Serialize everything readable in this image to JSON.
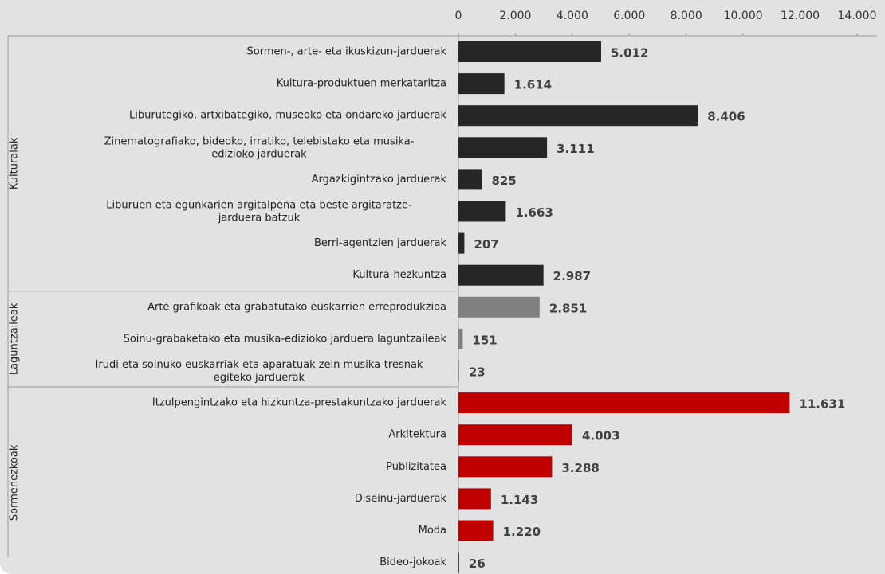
{
  "chart_data": {
    "type": "bar",
    "orientation": "horizontal",
    "xlim": [
      0,
      14000
    ],
    "xticks": [
      0,
      {
        "value": 2000,
        "label": "2.000"
      },
      {
        "value": 4000,
        "label": "4.000"
      },
      {
        "value": 6000,
        "label": "6.000"
      },
      {
        "value": 8000,
        "label": "8.000"
      },
      {
        "value": 10000,
        "label": "10.000"
      },
      {
        "value": 12000,
        "label": "12.000"
      },
      {
        "value": 14000,
        "label": "14.000"
      }
    ],
    "groups": [
      {
        "name": "Kulturalak",
        "color": "#262626",
        "categories": [
          "Sormen-, arte- eta ikuskizun-jarduerak",
          "Kultura-produktuen merkataritza",
          "Liburutegiko, artxibategiko, museoko eta ondareko jarduerak",
          "Zinematografiako, bideoko, irratiko, telebistako eta musika-\nedizioko jarduerak",
          "Argazkigintzako jarduerak",
          "Liburuen eta egunkarien argitalpena eta beste argitaratze-\njarduera batzuk",
          "Berri-agentzien jarduerak",
          "Kultura-hezkuntza"
        ],
        "values": [
          5012,
          1614,
          8406,
          3111,
          825,
          1663,
          207,
          2987
        ],
        "value_labels": [
          "5.012",
          "1.614",
          "8.406",
          "3.111",
          "825",
          "1.663",
          "207",
          "2.987"
        ]
      },
      {
        "name": "Laguntzaileak",
        "color": "#808080",
        "categories": [
          "Arte grafikoak eta grabatutako euskarrien erreprodukzioa",
          "Soinu-grabaketako eta musika-edizioko jarduera laguntzaileak",
          "Irudi eta soinuko euskarriak eta aparatuak zein musika-tresnak\negiteko jarduerak"
        ],
        "values": [
          2851,
          151,
          23
        ],
        "value_labels": [
          "2.851",
          "151",
          "23"
        ]
      },
      {
        "name": "Sormenezkoak",
        "color": "#c00000",
        "categories": [
          "Itzulpengintzako eta hizkuntza-prestakuntzako jarduerak",
          "Arkitektura",
          "Publizitatea",
          "Diseinu-jarduerak",
          "Moda",
          "Bideo-jokoak"
        ],
        "values": [
          11631,
          4003,
          3288,
          1143,
          1220,
          26
        ],
        "value_labels": [
          "11.631",
          "4.003",
          "3.288",
          "1.143",
          "1.220",
          "26"
        ]
      }
    ]
  }
}
